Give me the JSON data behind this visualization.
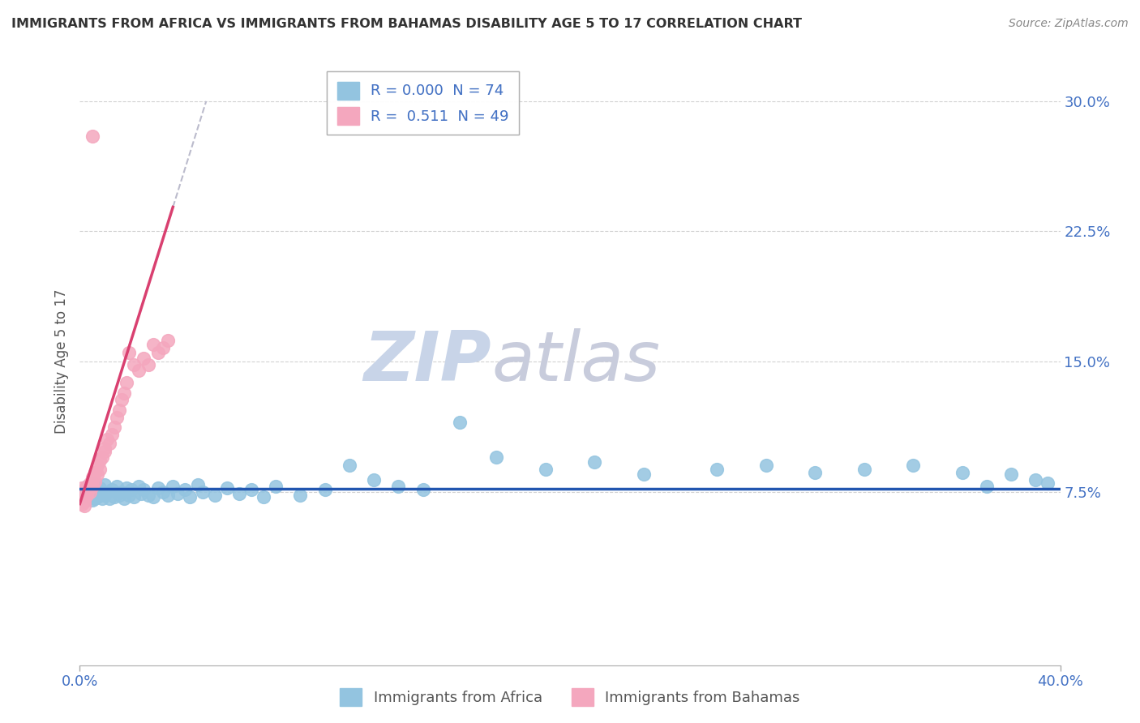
{
  "title": "IMMIGRANTS FROM AFRICA VS IMMIGRANTS FROM BAHAMAS DISABILITY AGE 5 TO 17 CORRELATION CHART",
  "source": "Source: ZipAtlas.com",
  "ylabel": "Disability Age 5 to 17",
  "xlim": [
    0.0,
    0.4
  ],
  "ylim": [
    -0.025,
    0.325
  ],
  "x_tick_positions": [
    0.0,
    0.4
  ],
  "x_tick_labels": [
    "0.0%",
    "40.0%"
  ],
  "y_ticks": [
    0.075,
    0.15,
    0.225,
    0.3
  ],
  "y_tick_labels": [
    "7.5%",
    "15.0%",
    "22.5%",
    "30.0%"
  ],
  "legend_label1": "Immigrants from Africa",
  "legend_label2": "Immigrants from Bahamas",
  "color_africa": "#93C4E0",
  "color_bahamas": "#F4A7BE",
  "color_africa_line": "#2256B0",
  "color_bahamas_line": "#D94070",
  "color_bahamas_trend_ext": "#D0D0D8",
  "watermark_zip": "ZIP",
  "watermark_atlas": "atlas",
  "watermark_color_zip": "#C8D4E8",
  "watermark_color_atlas": "#C8CCDC",
  "grid_color": "#cccccc",
  "background_color": "#ffffff",
  "title_color": "#333333",
  "axis_color": "#4472c4",
  "R_africa": 0.0,
  "N_africa": 74,
  "R_bahamas": 0.511,
  "N_bahamas": 49,
  "africa_x": [
    0.001,
    0.002,
    0.002,
    0.003,
    0.003,
    0.003,
    0.004,
    0.004,
    0.005,
    0.005,
    0.005,
    0.006,
    0.006,
    0.007,
    0.007,
    0.008,
    0.008,
    0.009,
    0.009,
    0.01,
    0.01,
    0.011,
    0.012,
    0.013,
    0.014,
    0.015,
    0.016,
    0.017,
    0.018,
    0.019,
    0.02,
    0.021,
    0.022,
    0.024,
    0.025,
    0.026,
    0.028,
    0.03,
    0.032,
    0.034,
    0.036,
    0.038,
    0.04,
    0.043,
    0.045,
    0.048,
    0.05,
    0.055,
    0.06,
    0.065,
    0.07,
    0.075,
    0.08,
    0.09,
    0.1,
    0.11,
    0.12,
    0.13,
    0.14,
    0.155,
    0.17,
    0.19,
    0.21,
    0.23,
    0.26,
    0.28,
    0.3,
    0.32,
    0.34,
    0.36,
    0.37,
    0.38,
    0.39,
    0.395
  ],
  "africa_y": [
    0.075,
    0.076,
    0.074,
    0.077,
    0.073,
    0.078,
    0.072,
    0.076,
    0.07,
    0.078,
    0.08,
    0.071,
    0.074,
    0.072,
    0.076,
    0.073,
    0.077,
    0.071,
    0.075,
    0.073,
    0.079,
    0.075,
    0.071,
    0.076,
    0.072,
    0.078,
    0.073,
    0.075,
    0.071,
    0.077,
    0.073,
    0.076,
    0.072,
    0.078,
    0.074,
    0.076,
    0.073,
    0.072,
    0.077,
    0.075,
    0.073,
    0.078,
    0.074,
    0.076,
    0.072,
    0.079,
    0.075,
    0.073,
    0.077,
    0.074,
    0.076,
    0.072,
    0.078,
    0.073,
    0.076,
    0.09,
    0.082,
    0.078,
    0.076,
    0.115,
    0.095,
    0.088,
    0.092,
    0.085,
    0.088,
    0.09,
    0.086,
    0.088,
    0.09,
    0.086,
    0.078,
    0.085,
    0.082,
    0.08
  ],
  "bahamas_x": [
    0.001,
    0.001,
    0.001,
    0.001,
    0.001,
    0.002,
    0.002,
    0.002,
    0.002,
    0.002,
    0.002,
    0.003,
    0.003,
    0.003,
    0.003,
    0.004,
    0.004,
    0.004,
    0.005,
    0.005,
    0.005,
    0.005,
    0.006,
    0.006,
    0.007,
    0.007,
    0.008,
    0.008,
    0.009,
    0.01,
    0.01,
    0.011,
    0.012,
    0.013,
    0.014,
    0.015,
    0.016,
    0.017,
    0.018,
    0.019,
    0.02,
    0.022,
    0.024,
    0.026,
    0.028,
    0.03,
    0.032,
    0.034,
    0.036
  ],
  "bahamas_y": [
    0.075,
    0.073,
    0.077,
    0.07,
    0.068,
    0.076,
    0.072,
    0.074,
    0.069,
    0.071,
    0.067,
    0.078,
    0.073,
    0.076,
    0.074,
    0.08,
    0.075,
    0.077,
    0.082,
    0.078,
    0.28,
    0.083,
    0.086,
    0.081,
    0.09,
    0.085,
    0.093,
    0.088,
    0.095,
    0.1,
    0.098,
    0.105,
    0.103,
    0.108,
    0.112,
    0.118,
    0.122,
    0.128,
    0.132,
    0.138,
    0.155,
    0.148,
    0.145,
    0.152,
    0.148,
    0.16,
    0.155,
    0.158,
    0.162
  ],
  "africa_trend_y": 0.0765,
  "bahamas_trend_slope": 4.5,
  "bahamas_trend_intercept": 0.068
}
